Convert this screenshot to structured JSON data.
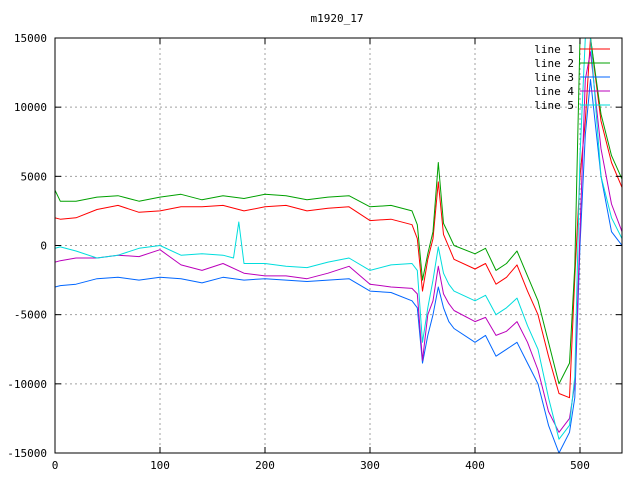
{
  "chart_data": {
    "type": "line",
    "title": "m1920_17",
    "xlabel": "",
    "ylabel": "",
    "xlim": [
      0,
      540
    ],
    "ylim": [
      -15000,
      15000
    ],
    "xticks": [
      0,
      100,
      200,
      300,
      400,
      500
    ],
    "yticks": [
      -15000,
      -10000,
      -5000,
      0,
      5000,
      10000,
      15000
    ],
    "grid": true,
    "legend_position": "top-right",
    "series": [
      {
        "name": "line 1",
        "color": "#ff0000",
        "x": [
          0,
          5,
          20,
          40,
          60,
          80,
          100,
          120,
          140,
          160,
          180,
          200,
          220,
          240,
          260,
          280,
          300,
          320,
          340,
          345,
          350,
          355,
          360,
          365,
          370,
          375,
          380,
          400,
          410,
          420,
          430,
          440,
          450,
          460,
          470,
          480,
          490,
          495,
          500,
          505,
          510,
          520,
          530,
          540
        ],
        "y": [
          2000,
          1900,
          2000,
          2600,
          2900,
          2400,
          2500,
          2800,
          2800,
          2900,
          2500,
          2800,
          2900,
          2500,
          2700,
          2800,
          1800,
          1900,
          1500,
          500,
          -3300,
          -1000,
          500,
          4600,
          800,
          -100,
          -1000,
          -1700,
          -1300,
          -2800,
          -2300,
          -1400,
          -3300,
          -5000,
          -8000,
          -10700,
          -11000,
          -2300,
          5000,
          9000,
          15000,
          9000,
          6000,
          4200
        ]
      },
      {
        "name": "line 2",
        "color": "#00a000",
        "x": [
          0,
          5,
          20,
          40,
          60,
          80,
          100,
          120,
          140,
          160,
          180,
          200,
          220,
          240,
          260,
          280,
          300,
          320,
          340,
          345,
          350,
          355,
          360,
          365,
          370,
          375,
          380,
          400,
          410,
          420,
          430,
          440,
          450,
          460,
          470,
          480,
          490,
          495,
          500,
          505,
          510,
          520,
          530,
          540
        ],
        "y": [
          4000,
          3200,
          3200,
          3500,
          3600,
          3200,
          3500,
          3700,
          3300,
          3600,
          3400,
          3700,
          3600,
          3300,
          3500,
          3600,
          2800,
          2900,
          2500,
          1500,
          -2500,
          -600,
          1000,
          6000,
          1600,
          800,
          0,
          -600,
          -200,
          -1800,
          -1300,
          -400,
          -2200,
          -4000,
          -7000,
          -10000,
          -8500,
          -1500,
          15000,
          15000,
          15000,
          9500,
          6500,
          4800
        ]
      },
      {
        "name": "line 3",
        "color": "#0066ff",
        "x": [
          0,
          5,
          20,
          40,
          60,
          80,
          100,
          120,
          140,
          160,
          180,
          200,
          220,
          240,
          260,
          280,
          300,
          320,
          340,
          345,
          350,
          355,
          360,
          365,
          370,
          375,
          380,
          400,
          410,
          420,
          430,
          440,
          450,
          460,
          470,
          480,
          490,
          495,
          500,
          505,
          510,
          520,
          530,
          540
        ],
        "y": [
          -3000,
          -2900,
          -2800,
          -2400,
          -2300,
          -2500,
          -2300,
          -2400,
          -2700,
          -2300,
          -2500,
          -2400,
          -2500,
          -2600,
          -2500,
          -2400,
          -3300,
          -3400,
          -4000,
          -4500,
          -8500,
          -6500,
          -5000,
          -3000,
          -4500,
          -5500,
          -6000,
          -7000,
          -6500,
          -8000,
          -7500,
          -7000,
          -8500,
          -10000,
          -13000,
          -15000,
          -13500,
          -11000,
          0,
          8000,
          12000,
          5000,
          1000,
          0
        ]
      },
      {
        "name": "line 4",
        "color": "#bb00bb",
        "x": [
          0,
          5,
          20,
          40,
          60,
          80,
          100,
          120,
          140,
          160,
          180,
          200,
          220,
          240,
          260,
          280,
          300,
          320,
          340,
          345,
          350,
          355,
          360,
          365,
          370,
          375,
          380,
          400,
          410,
          420,
          430,
          440,
          450,
          460,
          470,
          480,
          490,
          495,
          500,
          505,
          510,
          520,
          530,
          540
        ],
        "y": [
          -1200,
          -1100,
          -900,
          -900,
          -700,
          -800,
          -300,
          -1400,
          -1800,
          -1300,
          -2000,
          -2200,
          -2200,
          -2400,
          -2000,
          -1500,
          -2800,
          -3000,
          -3100,
          -3500,
          -8300,
          -5000,
          -4000,
          -1500,
          -3500,
          -4200,
          -4700,
          -5500,
          -5200,
          -6500,
          -6200,
          -5500,
          -7000,
          -9000,
          -12000,
          -13500,
          -12500,
          -10000,
          1000,
          12000,
          14000,
          7000,
          3000,
          1000
        ]
      },
      {
        "name": "line 5",
        "color": "#00dddd",
        "x": [
          0,
          5,
          20,
          40,
          60,
          80,
          100,
          120,
          140,
          160,
          170,
          175,
          180,
          200,
          220,
          240,
          260,
          280,
          300,
          320,
          340,
          345,
          350,
          355,
          360,
          365,
          370,
          375,
          380,
          400,
          410,
          420,
          430,
          440,
          450,
          460,
          470,
          480,
          490,
          495,
          500,
          505,
          510,
          520,
          530,
          540
        ],
        "y": [
          -200,
          -100,
          -400,
          -900,
          -700,
          -200,
          0,
          -700,
          -600,
          -700,
          -900,
          1700,
          -1300,
          -1300,
          -1500,
          -1600,
          -1200,
          -900,
          -1800,
          -1400,
          -1300,
          -1800,
          -7000,
          -4500,
          -2500,
          -100,
          -2000,
          -2800,
          -3300,
          -4000,
          -3600,
          -5000,
          -4500,
          -3800,
          -5800,
          -7500,
          -11000,
          -14000,
          -13000,
          -9500,
          6500,
          15000,
          15000,
          5000,
          2000,
          500
        ]
      }
    ]
  }
}
